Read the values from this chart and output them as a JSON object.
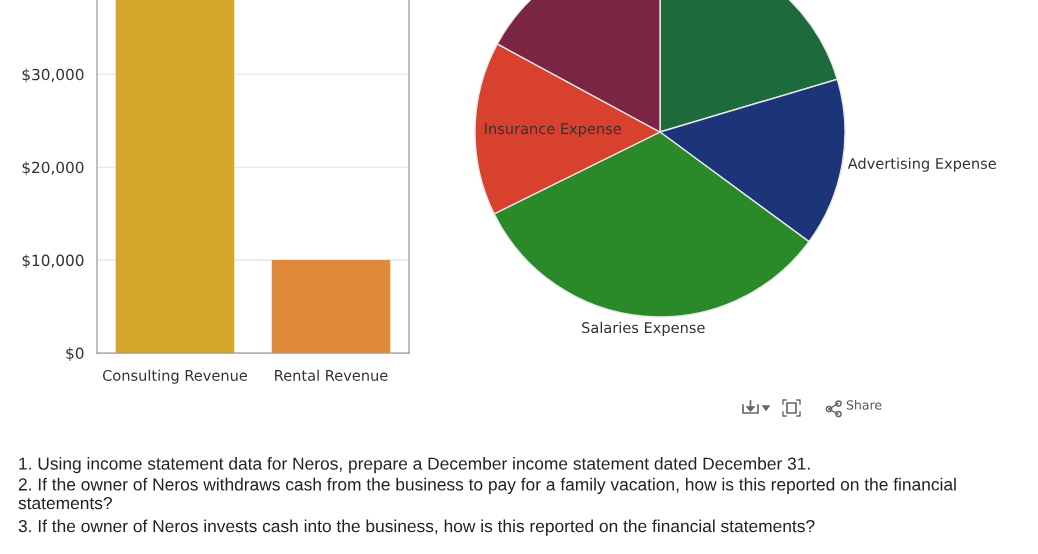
{
  "chart_data": [
    {
      "type": "bar",
      "categories": [
        "Consulting Revenue",
        "Rental Revenue"
      ],
      "values": [
        38000,
        10000
      ],
      "colors": [
        "#d4a72c",
        "#e0893a"
      ],
      "ylim": [
        0,
        38000
      ],
      "yticks": [
        {
          "value": 0,
          "label": "$0"
        },
        {
          "value": 10000,
          "label": "$10,000"
        },
        {
          "value": 20000,
          "label": "$20,000"
        },
        {
          "value": 30000,
          "label": "$30,000"
        }
      ],
      "grid": "y"
    },
    {
      "type": "pie",
      "categories": [
        null,
        "Advertising Expense",
        "Salaries Expense",
        "Insurance Expense",
        null
      ],
      "values": [
        20.4,
        14.7,
        32.6,
        15.2,
        17.1
      ],
      "colors": [
        "#1d6b3c",
        "#1c3578",
        "#2a8a2a",
        "#d9412f",
        "#7b2545"
      ]
    },
    {
      "type": "other",
      "annotations": [
        "Share"
      ]
    },
    {
      "type": "other",
      "annotations": [
        "1. Using income statement data for Neros, prepare a December income statement dated December 31.",
        "2. If the owner of Neros withdraws cash from the business to pay for a family vacation, how is this reported on the financial statements?",
        "3. If the owner of Neros invests cash into the business, how is this reported on the financial statements?"
      ]
    }
  ]
}
